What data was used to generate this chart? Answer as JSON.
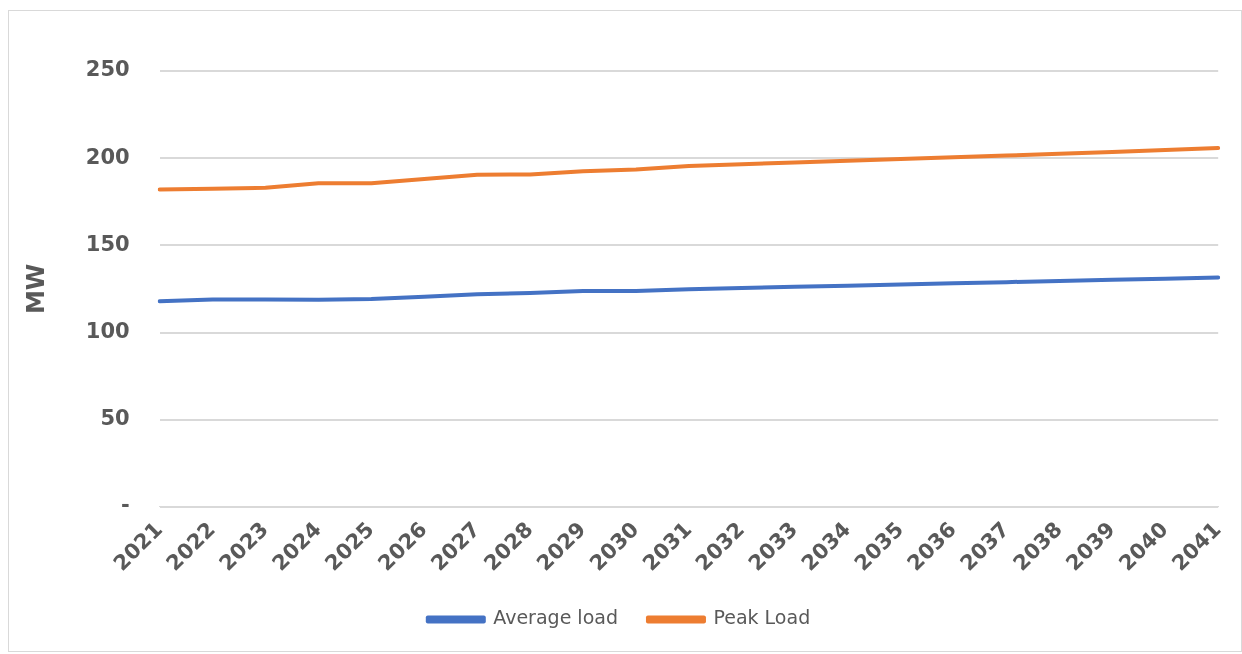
{
  "chart_data": {
    "type": "line",
    "ylabel": "MW",
    "categories": [
      "2021",
      "2022",
      "2023",
      "2024",
      "2025",
      "2026",
      "2027",
      "2028",
      "2029",
      "2030",
      "2031",
      "2032",
      "2033",
      "2034",
      "2035",
      "2036",
      "2037",
      "2038",
      "2039",
      "2040",
      "2041"
    ],
    "series": [
      {
        "name": "Average load",
        "color": "#4472c4",
        "values": [
          118,
          119,
          119,
          118.8,
          119.2,
          120.5,
          122,
          122.7,
          123.8,
          123.8,
          124.8,
          125.5,
          126.2,
          126.8,
          127.5,
          128.2,
          128.9,
          129.6,
          130.3,
          130.9,
          131.6
        ]
      },
      {
        "name": "Peak Load",
        "color": "#ed7d31",
        "values": [
          182,
          182.5,
          183,
          185.6,
          185.6,
          188,
          190.5,
          190.7,
          192.5,
          193.5,
          195.5,
          196.5,
          197.5,
          198.5,
          199.5,
          200.5,
          201.5,
          202.5,
          203.5,
          204.7,
          205.8
        ]
      }
    ],
    "ylim": [
      0,
      250
    ],
    "yticks": [
      {
        "value": 0,
        "label": "-"
      },
      50,
      100,
      150,
      200,
      250
    ],
    "grid": "y",
    "legend": "bottom",
    "marker": "none",
    "line_style": "solid"
  }
}
